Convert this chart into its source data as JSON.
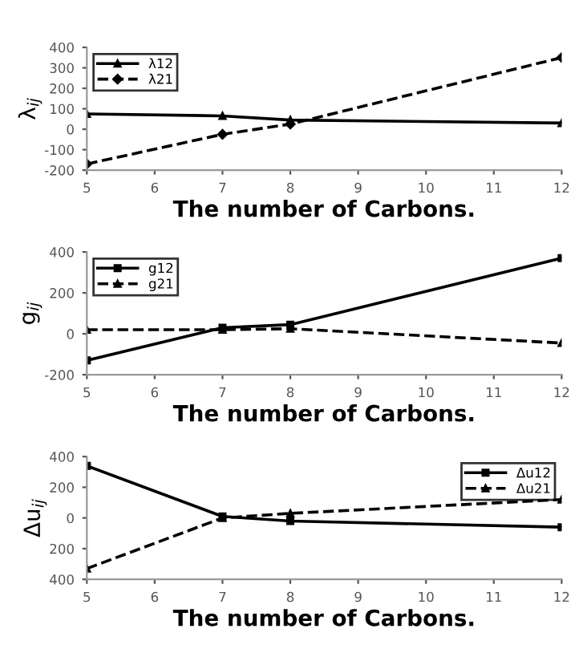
{
  "chart_data": [
    {
      "type": "line",
      "x": [
        5,
        7,
        8,
        12
      ],
      "xlim": [
        5,
        12
      ],
      "xticks": [
        5,
        6,
        7,
        8,
        9,
        10,
        11,
        12
      ],
      "ylim": [
        -200,
        400
      ],
      "yticks": [
        -200,
        -100,
        0,
        100,
        200,
        300,
        400
      ],
      "xlabel": "The number of Carbons.",
      "ylabel": "λ$_{ij}$",
      "legend": "top left",
      "grid": false,
      "series": [
        {
          "name": "λ12",
          "color": "#000000",
          "marker": "triangle",
          "line_style": "solid",
          "values": [
            75,
            65,
            45,
            30
          ]
        },
        {
          "name": "λ21",
          "color": "#000000",
          "marker": "diamond",
          "line_style": "dashed",
          "values": [
            -170,
            -25,
            25,
            350
          ]
        }
      ]
    },
    {
      "type": "line",
      "x": [
        5,
        7,
        8,
        12
      ],
      "xlim": [
        5,
        12
      ],
      "xticks": [
        5,
        6,
        7,
        8,
        9,
        10,
        11,
        12
      ],
      "ylim": [
        -200,
        400
      ],
      "yticks": [
        -200,
        0,
        200,
        400
      ],
      "xlabel": "The number of Carbons.",
      "ylabel": "g$_{ij}$",
      "legend": "top left",
      "grid": false,
      "series": [
        {
          "name": "g12",
          "color": "#000000",
          "marker": "square",
          "line_style": "solid",
          "values": [
            -130,
            30,
            45,
            370
          ]
        },
        {
          "name": "g21",
          "color": "#000000",
          "marker": "triangle",
          "line_style": "dashed",
          "values": [
            20,
            20,
            25,
            -45
          ]
        }
      ]
    },
    {
      "type": "line",
      "x": [
        5,
        7,
        8,
        12
      ],
      "xlim": [
        5,
        12
      ],
      "xticks": [
        5,
        6,
        7,
        8,
        9,
        10,
        11,
        12
      ],
      "ylim": [
        -400,
        400
      ],
      "yticks": [
        {
          "value": -400,
          "label": "400"
        },
        {
          "value": -200,
          "label": "200"
        },
        0,
        200,
        400
      ],
      "xlabel": "The number of Carbons.",
      "ylabel": "Δu$_{ij}$",
      "legend": "top right",
      "grid": false,
      "series": [
        {
          "name": "Δu12",
          "color": "#000000",
          "marker": "square",
          "line_style": "solid",
          "values": [
            340,
            10,
            -20,
            -60
          ]
        },
        {
          "name": "Δu21",
          "color": "#000000",
          "marker": "triangle",
          "line_style": "dashed",
          "values": [
            -330,
            0,
            30,
            120
          ]
        }
      ]
    }
  ]
}
